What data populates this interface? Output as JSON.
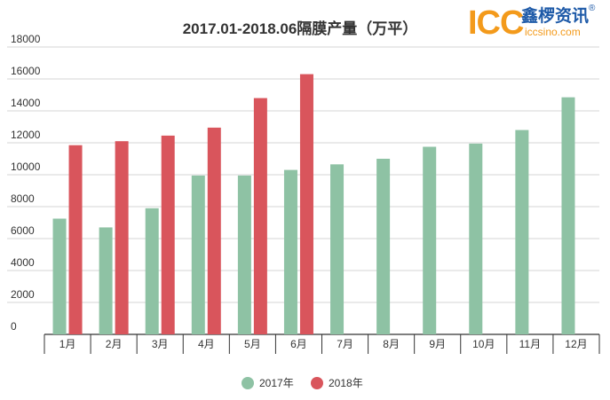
{
  "logo": {
    "brand": "ICC",
    "name_cn": "鑫椤资讯",
    "site": "iccsino.com",
    "reg_mark": "®"
  },
  "colors": {
    "series_2017": "#8ec2a4",
    "series_2018": "#d9555c",
    "grid": "#d6d6d6",
    "axis": "#333333",
    "text": "#333333"
  },
  "chart_data": {
    "type": "bar",
    "title": "2017.01-2018.06隔膜产量（万平）",
    "categories": [
      "1月",
      "2月",
      "3月",
      "4月",
      "5月",
      "6月",
      "7月",
      "8月",
      "9月",
      "10月",
      "11月",
      "12月"
    ],
    "series": [
      {
        "name": "2017年",
        "values": [
          7250,
          6700,
          7900,
          9950,
          9950,
          10300,
          10650,
          11000,
          11750,
          11950,
          12800,
          14850
        ]
      },
      {
        "name": "2018年",
        "values": [
          11850,
          12100,
          12450,
          12950,
          14800,
          16300,
          null,
          null,
          null,
          null,
          null,
          null
        ]
      }
    ],
    "yticks": [
      0,
      2000,
      4000,
      6000,
      8000,
      10000,
      12000,
      14000,
      16000,
      18000
    ],
    "ylim": [
      0,
      18000
    ],
    "grid": true,
    "legend_position": "bottom-center"
  }
}
